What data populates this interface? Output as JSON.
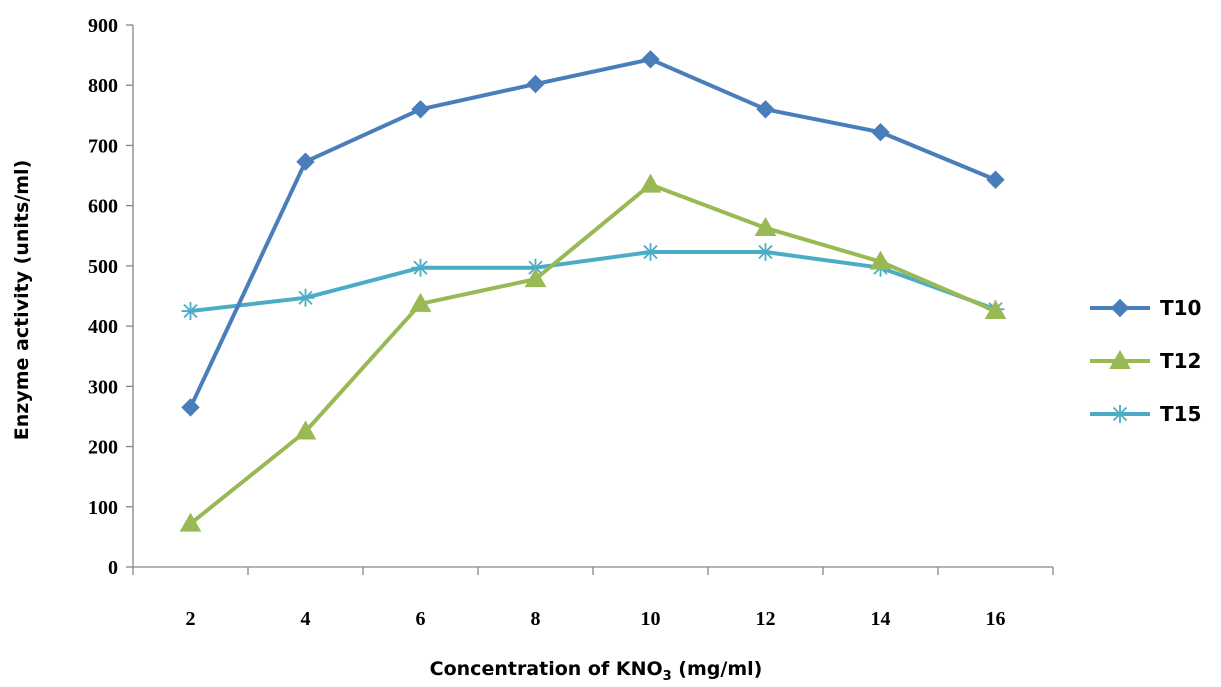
{
  "chart_data": {
    "type": "line",
    "xlabel": "Concentration of KNO",
    "xlabel_subscript": "3",
    "xlabel_suffix": " (mg/ml)",
    "ylabel": "Enzyme activity (units/ml)",
    "categories": [
      "2",
      "4",
      "6",
      "8",
      "10",
      "12",
      "14",
      "16"
    ],
    "ylim": [
      0,
      900
    ],
    "yticks": [
      0,
      100,
      200,
      300,
      400,
      500,
      600,
      700,
      800,
      900
    ],
    "legend_position": "right",
    "grid": false,
    "series": [
      {
        "name": "T10",
        "color": "#4A7EBB",
        "marker": "diamond",
        "values": [
          265,
          673,
          760,
          802,
          843,
          760,
          722,
          643
        ]
      },
      {
        "name": "T12",
        "color": "#98B954",
        "marker": "triangle",
        "values": [
          72,
          225,
          437,
          478,
          635,
          563,
          507,
          425
        ]
      },
      {
        "name": "T15",
        "color": "#4BACC6",
        "marker": "star",
        "values": [
          425,
          447,
          497,
          497,
          523,
          523,
          497,
          428
        ]
      }
    ]
  }
}
